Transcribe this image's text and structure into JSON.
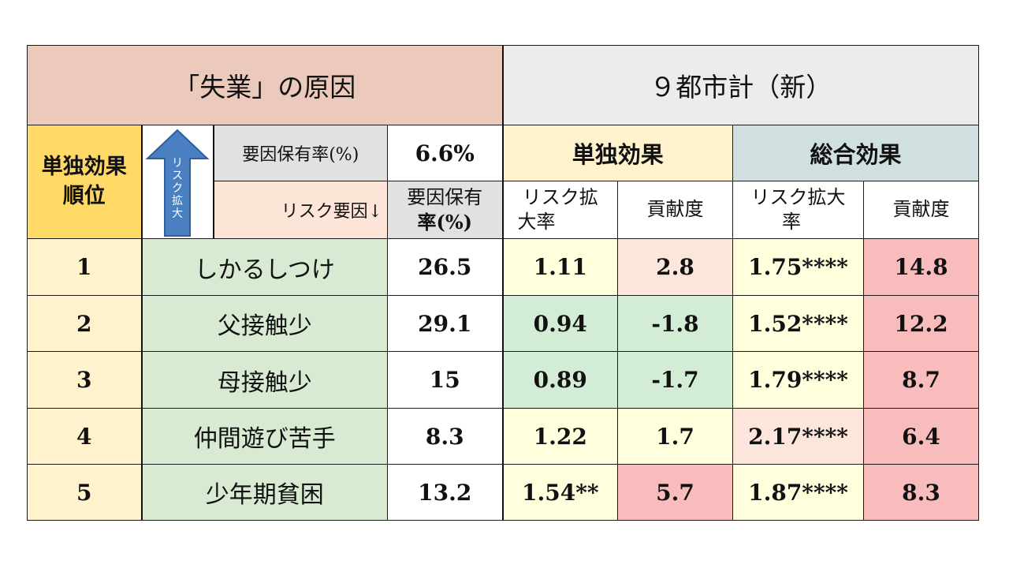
{
  "colors": {
    "title_left_bg": "#ebc9bb",
    "title_right_bg": "#ececec",
    "single_effect_bg": "#fff2cc",
    "total_effect_bg": "#d0e0e0",
    "rank_bg": "#ffd966",
    "rank_body_bg": "#fff2cc",
    "factor_bg": "#d9ead3",
    "label_gray_bg": "#e1e1e1",
    "label_pink_bg": "#fce4d6",
    "cell_yellow": "#ffffdd",
    "cell_green": "#d3ecd6",
    "cell_peach": "#fce6dc",
    "cell_red": "#f9bcbc",
    "arrow_blue": "#4a7fc1"
  },
  "header": {
    "title_left": "「失業」の原因",
    "title_right": "９都市計（新）",
    "rank_label_line1": "単独効果",
    "rank_label_line2": "順位",
    "arrow_text": [
      "リ",
      "ス",
      "ク",
      "拡",
      "大"
    ],
    "prevalence_label": "要因保有率(%)",
    "prevalence_value": "6.6%",
    "single_effect": "単独効果",
    "total_effect": "総合効果",
    "risk_factor_label": "リスク要因↓",
    "col_prevalence_line1": "要因保有",
    "col_prevalence_line2": "率(%)",
    "col_single_risk_line1": "リスク拡",
    "col_single_risk_line2": "大率",
    "col_single_contrib": "貢献度",
    "col_total_risk_line1": "リスク拡大",
    "col_total_risk_line2": "率",
    "col_total_contrib": "貢献度"
  },
  "rows": [
    {
      "rank": "1",
      "factor": "しかるしつけ",
      "prevalence": "26.5",
      "single_risk": "1.11",
      "single_contrib": "2.8",
      "total_risk": "1.75****",
      "total_contrib": "14.8",
      "single_risk_color": "#ffffdd",
      "single_contrib_color": "#fce6dc",
      "total_risk_color": "#ffffdd",
      "total_contrib_color": "#f9bcbc"
    },
    {
      "rank": "2",
      "factor": "父接触少",
      "prevalence": "29.1",
      "single_risk": "0.94",
      "single_contrib": "-1.8",
      "total_risk": "1.52****",
      "total_contrib": "12.2",
      "single_risk_color": "#d3ecd6",
      "single_contrib_color": "#d3ecd6",
      "total_risk_color": "#ffffdd",
      "total_contrib_color": "#f9bcbc"
    },
    {
      "rank": "3",
      "factor": "母接触少",
      "prevalence": "15",
      "single_risk": "0.89",
      "single_contrib": "-1.7",
      "total_risk": "1.79****",
      "total_contrib": "8.7",
      "single_risk_color": "#d3ecd6",
      "single_contrib_color": "#d3ecd6",
      "total_risk_color": "#ffffdd",
      "total_contrib_color": "#f9bcbc"
    },
    {
      "rank": "4",
      "factor": "仲間遊び苦手",
      "prevalence": "8.3",
      "single_risk": "1.22",
      "single_contrib": "1.7",
      "total_risk": "2.17****",
      "total_contrib": "6.4",
      "single_risk_color": "#ffffdd",
      "single_contrib_color": "#ffffdd",
      "total_risk_color": "#fce6dc",
      "total_contrib_color": "#f9bcbc"
    },
    {
      "rank": "5",
      "factor": "少年期貧困",
      "prevalence": "13.2",
      "single_risk": "1.54**",
      "single_contrib": "5.7",
      "total_risk": "1.87****",
      "total_contrib": "8.3",
      "single_risk_color": "#ffffdd",
      "single_contrib_color": "#f9bcbc",
      "total_risk_color": "#ffffdd",
      "total_contrib_color": "#f9bcbc"
    }
  ]
}
